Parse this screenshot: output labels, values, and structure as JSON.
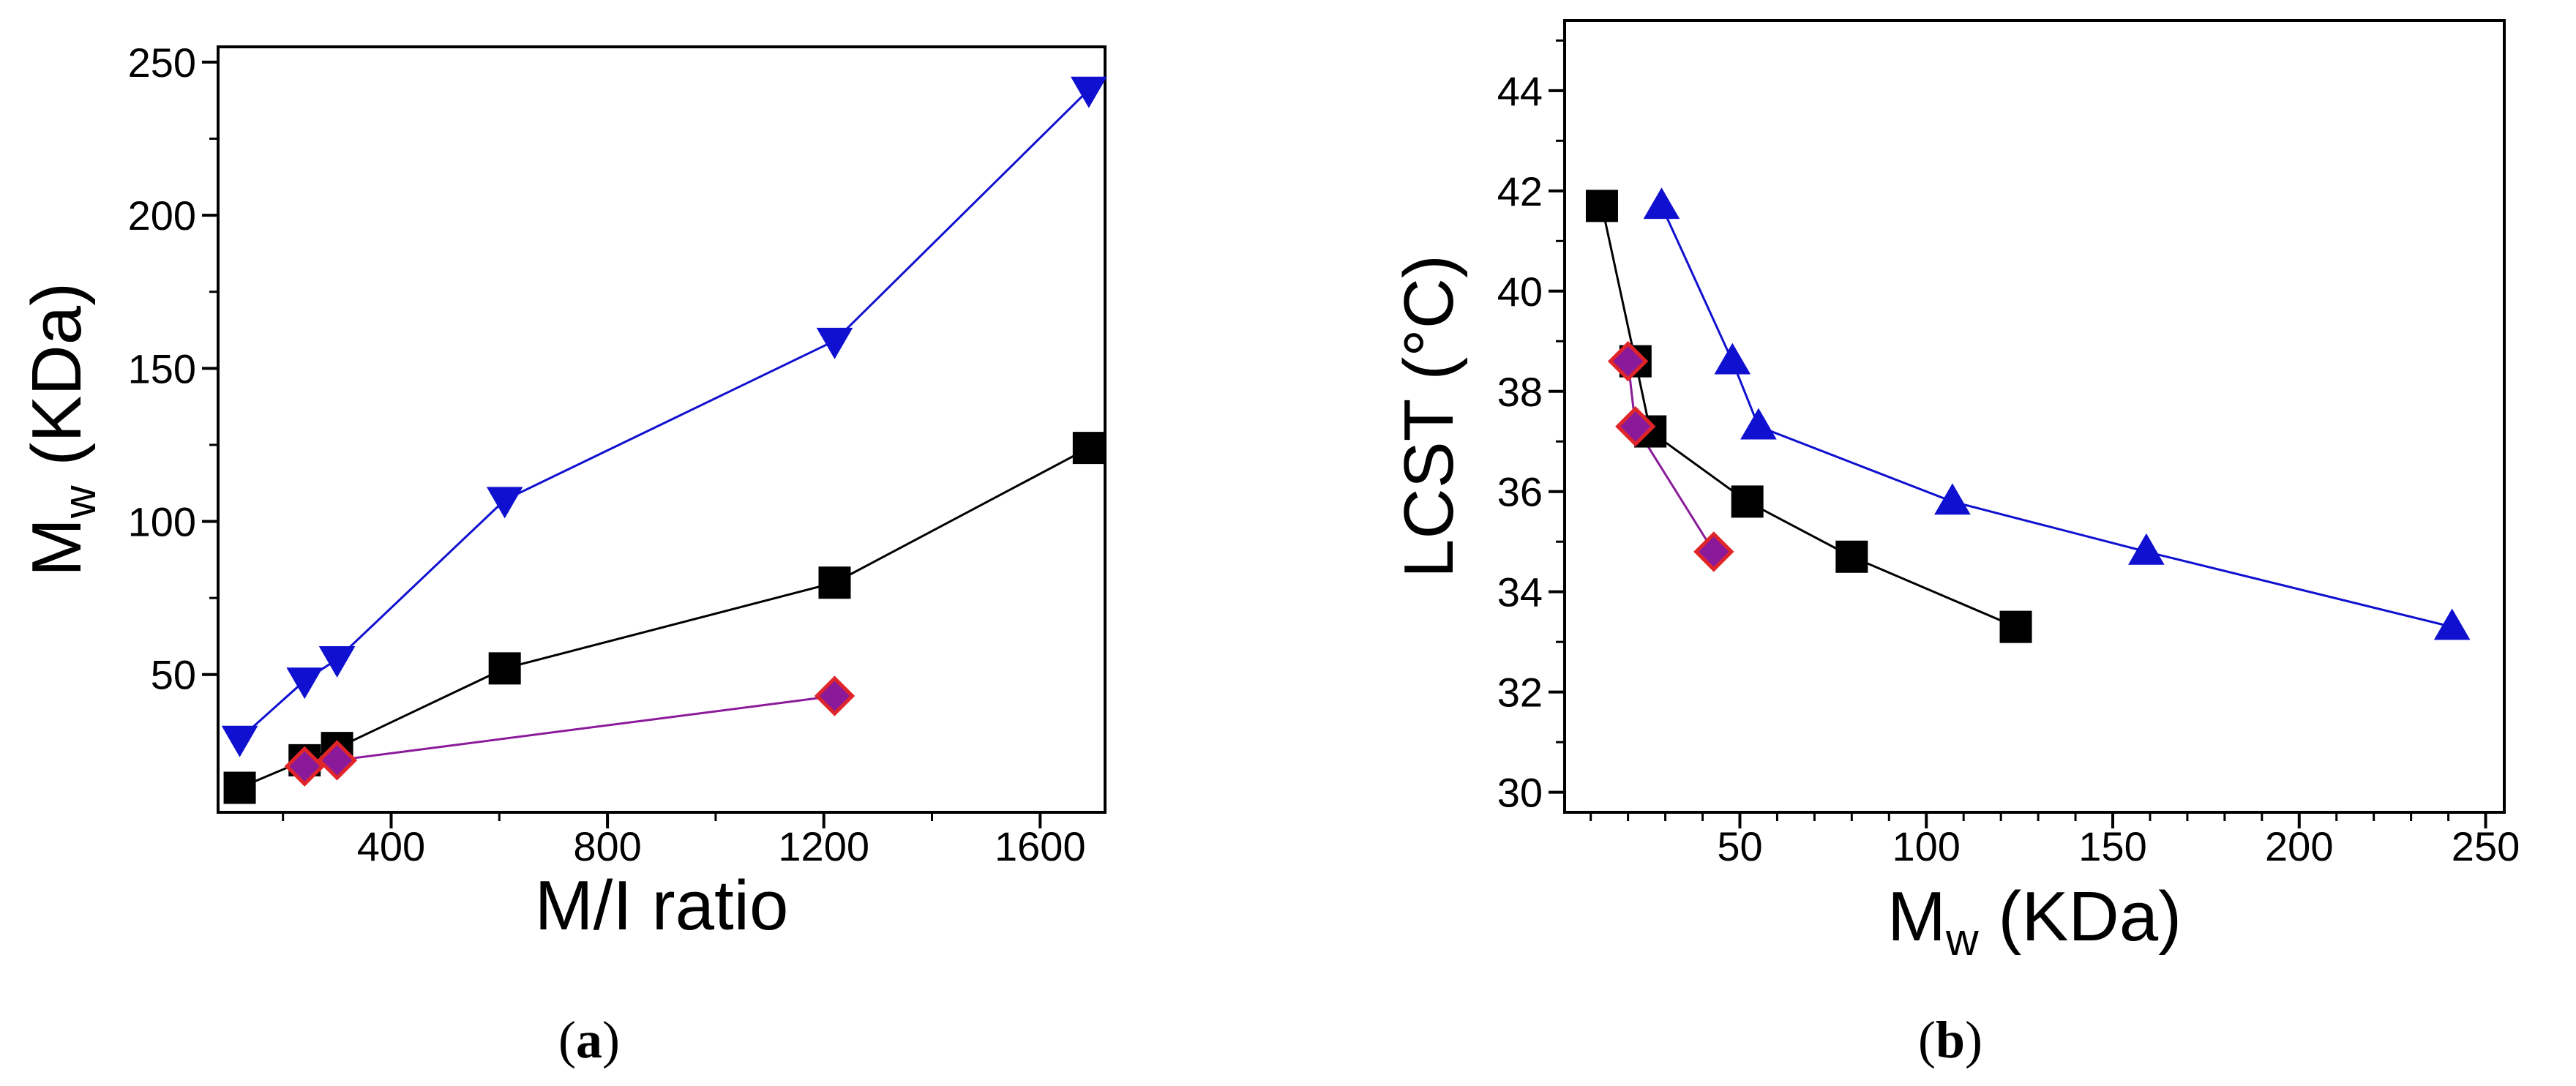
{
  "chart_data": [
    {
      "type": "line",
      "panel": "a",
      "caption_open": "(",
      "caption_letter": "a",
      "caption_close": ")",
      "xlabel": "M/I ratio",
      "ylabel_main": "M",
      "ylabel_sub": "w",
      "ylabel_rest": " (KDa)",
      "xlim": [
        80,
        1720
      ],
      "ylim": [
        5,
        255
      ],
      "xticks": [
        400,
        800,
        1200,
        1600
      ],
      "xminor": [
        200,
        600,
        1000,
        1400
      ],
      "yticks": [
        50,
        100,
        150,
        200,
        250
      ],
      "yminor": [
        75,
        125,
        175,
        225
      ],
      "series": [
        {
          "name": "blue-down-triangle",
          "color": "#1010d0",
          "marker": "triangle-down",
          "x": [
            120,
            240,
            300,
            610,
            1220,
            1690
          ],
          "y": [
            29,
            48,
            55,
            107,
            159,
            241
          ]
        },
        {
          "name": "black-square",
          "color": "#000000",
          "marker": "square",
          "x": [
            120,
            240,
            300,
            610,
            1220,
            1690
          ],
          "y": [
            13,
            22,
            26,
            52,
            80,
            124
          ]
        },
        {
          "name": "purple-diamond",
          "color": "#8b1a9a",
          "marker": "diamond",
          "x": [
            240,
            300,
            1220
          ],
          "y": [
            20,
            22,
            43
          ]
        }
      ]
    },
    {
      "type": "line",
      "panel": "b",
      "caption_open": "(",
      "caption_letter": "b",
      "caption_close": ")",
      "xlabel_main": "M",
      "xlabel_sub": "w",
      "xlabel_rest": " (KDa)",
      "ylabel": "LCST (°C)",
      "xlim": [
        3,
        255
      ],
      "ylim": [
        29.6,
        45.4
      ],
      "xticks": [
        50,
        100,
        150,
        200,
        250
      ],
      "xminor": [
        10,
        20,
        30,
        40,
        60,
        70,
        80,
        90,
        110,
        120,
        130,
        140,
        160,
        170,
        180,
        190,
        210,
        220,
        230,
        240
      ],
      "yticks": [
        30,
        32,
        34,
        36,
        38,
        40,
        42,
        44
      ],
      "yminor": [
        31,
        33,
        35,
        37,
        39,
        41,
        43,
        45
      ],
      "series": [
        {
          "name": "blue-up-triangle",
          "color": "#1010d0",
          "marker": "triangle-up",
          "x": [
            29,
            48,
            55,
            107,
            159,
            241
          ],
          "y": [
            41.7,
            38.6,
            37.3,
            35.8,
            34.8,
            33.3
          ]
        },
        {
          "name": "black-square",
          "color": "#000000",
          "marker": "square",
          "x": [
            13,
            22,
            26,
            52,
            80,
            124
          ],
          "y": [
            41.7,
            38.6,
            37.2,
            35.8,
            34.7,
            33.3
          ]
        },
        {
          "name": "purple-diamond",
          "color": "#8b1a9a",
          "marker": "diamond",
          "x": [
            20,
            22,
            43
          ],
          "y": [
            38.6,
            37.3,
            34.8
          ]
        }
      ]
    }
  ]
}
